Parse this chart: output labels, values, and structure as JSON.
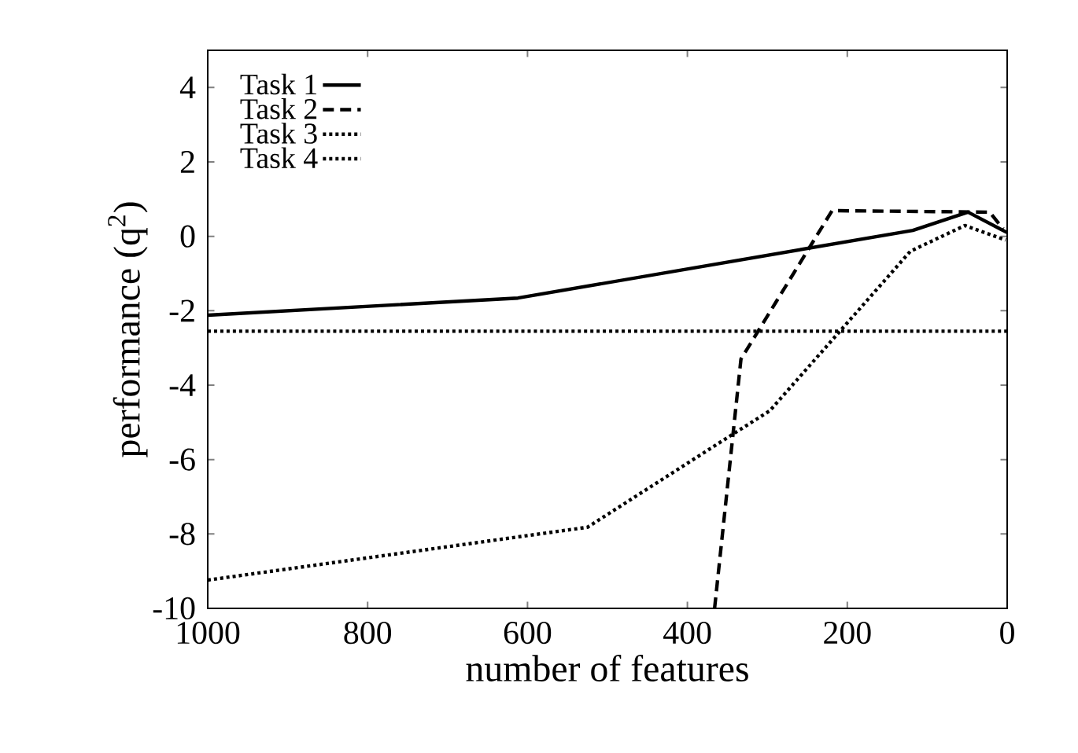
{
  "chart_data": {
    "type": "line",
    "xlabel": "number of features",
    "ylabel": "performance (q$^{2}$)",
    "xlim": [
      1000,
      0
    ],
    "ylim": [
      -10,
      5
    ],
    "xticks": [
      1000,
      800,
      600,
      400,
      200,
      0
    ],
    "yticks": [
      -10,
      -8,
      -6,
      -4,
      -2,
      0,
      2,
      4
    ],
    "legend": "top left",
    "grid": false,
    "marker": "none",
    "series": [
      {
        "name": "Task 1",
        "color": "#000000",
        "line_style": "solid",
        "x": [
          1000,
          612,
          118,
          49,
          0
        ],
        "values": [
          -2.12,
          -1.66,
          0.16,
          0.65,
          0.1
        ]
      },
      {
        "name": "Task 2",
        "color": "#000000",
        "line_style": "dashed",
        "x": [
          366,
          333,
          219,
          22,
          5
        ],
        "values": [
          -10,
          -3.3,
          0.69,
          0.65,
          0.2
        ]
      },
      {
        "name": "Task 3",
        "color": "#000000",
        "line_style": "dotted",
        "x": [
          1000,
          525,
          344,
          297,
          121,
          53,
          2
        ],
        "values": [
          -9.24,
          -7.82,
          -5.33,
          -4.69,
          -0.4,
          0.29,
          -0.1
        ]
      },
      {
        "name": "Task 4",
        "color": "#000000",
        "line_style": "dotted",
        "x": [
          1000,
          0
        ],
        "values": [
          -2.55,
          -2.55
        ]
      }
    ]
  }
}
